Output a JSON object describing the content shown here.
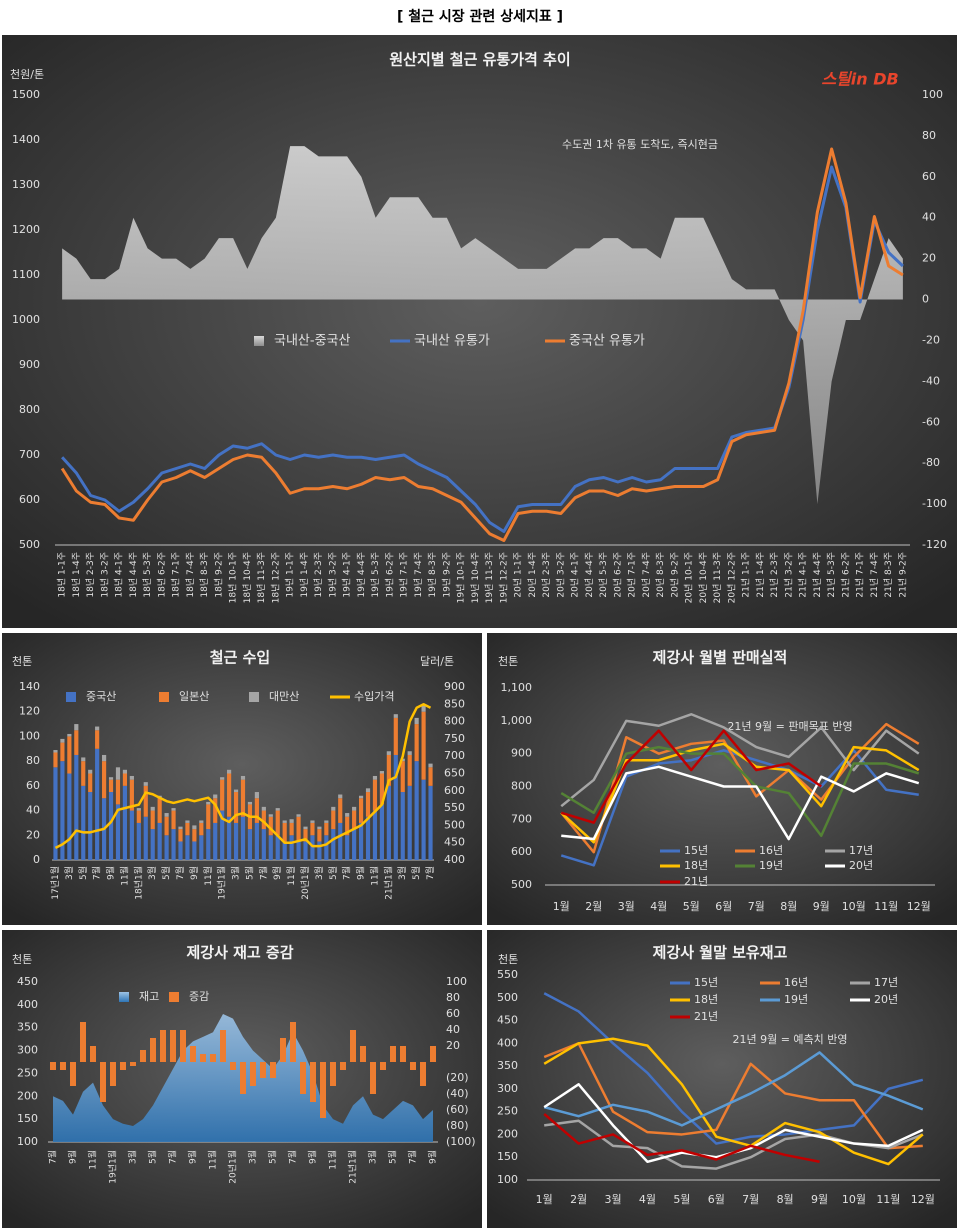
{
  "page_title": "[ 철근 시장 관련 상세지표 ]",
  "chart_data": [
    {
      "type": "combo",
      "title": "원산지별 철근 유통가격 추이",
      "y_label": "천원/톤",
      "annotation": "수도권 1차 유통 도착도, 즉시현금",
      "logo": "스틸in DB",
      "categories": [
        "18년 1-1주",
        "18년 1-4주",
        "18년 2-3주",
        "18년 3-2주",
        "18년 4-1주",
        "18년 4-4주",
        "18년 5-3주",
        "18년 6-2주",
        "18년 7-1주",
        "18년 7-4주",
        "18년 8-3주",
        "18년 9-2주",
        "18년 10-1주",
        "18년 10-4주",
        "18년 11-3주",
        "18년 12-2주",
        "19년 1-1주",
        "19년 1-4주",
        "19년 2-3주",
        "19년 3-2주",
        "19년 4-1주",
        "19년 4-4주",
        "19년 5-3주",
        "19년 6-2주",
        "19년 7-1주",
        "19년 7-4주",
        "19년 8-3주",
        "19년 9-2주",
        "19년 10-1주",
        "19년 10-4주",
        "19년 11-3주",
        "19년 12-2주",
        "20년 1-1주",
        "20년 1-4주",
        "20년 2-3주",
        "20년 3-2주",
        "20년 4-1주",
        "20년 4-4주",
        "20년 5-3주",
        "20년 6-2주",
        "20년 7-1주",
        "20년 7-4주",
        "20년 8-3주",
        "20년 9-2주",
        "20년 10-1주",
        "20년 10-4주",
        "20년 11-3주",
        "20년 12-2주",
        "21년 1-1주",
        "21년 1-4주",
        "21년 2-3주",
        "21년 3-2주",
        "21년 4-1주",
        "21년 4-4주",
        "21년 5-3주",
        "21년 6-2주",
        "21년 7-1주",
        "21년 7-4주",
        "21년 8-3주",
        "21년 9-2주"
      ],
      "series": [
        {
          "name": "국내산-중국산",
          "kind": "area",
          "axis": "y2",
          "color": "#bfbfbf",
          "values": [
            25,
            20,
            10,
            10,
            15,
            40,
            25,
            20,
            20,
            15,
            20,
            30,
            30,
            15,
            30,
            40,
            75,
            75,
            70,
            70,
            70,
            60,
            40,
            50,
            50,
            50,
            40,
            40,
            25,
            30,
            25,
            20,
            15,
            15,
            15,
            20,
            25,
            25,
            30,
            30,
            25,
            25,
            20,
            40,
            40,
            40,
            25,
            10,
            5,
            5,
            5,
            -10,
            -20,
            -100,
            -40,
            -10,
            -10,
            10,
            30,
            20
          ]
        },
        {
          "name": "국내산 유통가",
          "kind": "line",
          "color": "#4472c4",
          "values": [
            695,
            660,
            610,
            600,
            575,
            595,
            625,
            660,
            670,
            680,
            670,
            700,
            720,
            715,
            725,
            700,
            690,
            700,
            695,
            700,
            695,
            695,
            690,
            695,
            700,
            680,
            665,
            650,
            620,
            590,
            550,
            530,
            585,
            590,
            590,
            590,
            630,
            645,
            650,
            640,
            650,
            640,
            645,
            670,
            670,
            670,
            670,
            740,
            750,
            755,
            760,
            850,
            1000,
            1200,
            1340,
            1250,
            1040,
            1220,
            1150,
            1120
          ]
        },
        {
          "name": "중국산 유통가",
          "kind": "line",
          "color": "#ed7d31",
          "values": [
            670,
            620,
            595,
            590,
            560,
            555,
            600,
            640,
            650,
            665,
            650,
            670,
            690,
            700,
            695,
            660,
            615,
            625,
            625,
            630,
            625,
            635,
            650,
            645,
            650,
            630,
            625,
            610,
            595,
            560,
            525,
            510,
            570,
            575,
            575,
            570,
            605,
            620,
            620,
            610,
            625,
            620,
            625,
            630,
            630,
            630,
            645,
            730,
            745,
            750,
            755,
            860,
            1020,
            1240,
            1380,
            1260,
            1050,
            1230,
            1120,
            1100
          ]
        }
      ],
      "ylim": [
        500,
        1500
      ],
      "yticks": [
        500,
        600,
        700,
        800,
        900,
        1000,
        1100,
        1200,
        1300,
        1400,
        1500
      ],
      "y2lim": [
        -120,
        100
      ],
      "y2ticks": [
        -120,
        -100,
        -80,
        -60,
        -40,
        -20,
        0,
        20,
        40,
        60,
        80,
        100
      ]
    },
    {
      "type": "combo",
      "title": "철근 수입",
      "y_label": "천톤",
      "y2_label": "달러/톤",
      "stacked": true,
      "categories": [
        "17년1월",
        null,
        "3월",
        null,
        "5월",
        null,
        "7월",
        null,
        "9월",
        null,
        "11월",
        null,
        "18년1월",
        null,
        "3월",
        null,
        "5월",
        null,
        "7월",
        null,
        "9월",
        null,
        "11월",
        null,
        "19년1월",
        null,
        "3월",
        null,
        "5월",
        null,
        "7월",
        null,
        "9월",
        null,
        "11월",
        null,
        "20년1월",
        null,
        "3월",
        null,
        "5월",
        null,
        "7월",
        null,
        "9월",
        null,
        "11월",
        null,
        "21년1월",
        null,
        "3월",
        null,
        "5월",
        null,
        "7월"
      ],
      "series": [
        {
          "name": "중국산",
          "kind": "bar",
          "color": "#4472c4",
          "values": [
            75,
            80,
            70,
            85,
            60,
            55,
            90,
            50,
            55,
            45,
            60,
            40,
            30,
            35,
            25,
            30,
            20,
            25,
            15,
            20,
            15,
            20,
            25,
            30,
            40,
            35,
            30,
            35,
            25,
            30,
            25,
            20,
            20,
            15,
            20,
            15,
            15,
            20,
            15,
            20,
            25,
            30,
            20,
            25,
            30,
            35,
            40,
            45,
            60,
            85,
            55,
            60,
            80,
            65,
            60
          ]
        },
        {
          "name": "일본산",
          "kind": "bar",
          "color": "#ed7d31",
          "values": [
            12,
            15,
            30,
            20,
            20,
            15,
            15,
            30,
            10,
            20,
            10,
            25,
            10,
            25,
            15,
            20,
            15,
            15,
            10,
            10,
            10,
            10,
            20,
            20,
            25,
            35,
            25,
            30,
            20,
            20,
            15,
            15,
            20,
            15,
            10,
            20,
            10,
            10,
            10,
            10,
            15,
            20,
            15,
            15,
            20,
            20,
            25,
            25,
            25,
            30,
            25,
            25,
            30,
            55,
            15
          ]
        },
        {
          "name": "대만산",
          "kind": "bar",
          "color": "#a5a5a5",
          "values": [
            2,
            3,
            2,
            5,
            3,
            3,
            3,
            5,
            2,
            10,
            3,
            3,
            2,
            3,
            3,
            2,
            3,
            2,
            2,
            2,
            3,
            2,
            2,
            3,
            2,
            3,
            2,
            3,
            2,
            5,
            3,
            2,
            2,
            2,
            3,
            2,
            2,
            2,
            2,
            2,
            3,
            3,
            3,
            3,
            2,
            3,
            3,
            2,
            3,
            3,
            2,
            3,
            5,
            5,
            3
          ]
        },
        {
          "name": "수입가격",
          "kind": "line",
          "axis": "y2",
          "color": "#ffc000",
          "values": [
            435,
            445,
            460,
            485,
            480,
            480,
            485,
            490,
            510,
            545,
            550,
            555,
            560,
            595,
            590,
            580,
            570,
            565,
            570,
            575,
            570,
            575,
            580,
            560,
            520,
            510,
            530,
            535,
            525,
            525,
            510,
            490,
            470,
            450,
            450,
            455,
            460,
            440,
            440,
            445,
            460,
            470,
            480,
            490,
            500,
            520,
            540,
            560,
            630,
            640,
            700,
            800,
            840,
            850,
            840
          ]
        }
      ],
      "ylim": [
        0,
        140
      ],
      "yticks": [
        0,
        20,
        40,
        60,
        80,
        100,
        120,
        140
      ],
      "y2lim": [
        400,
        900
      ],
      "y2ticks": [
        400,
        450,
        500,
        550,
        600,
        650,
        700,
        750,
        800,
        850,
        900
      ]
    },
    {
      "type": "line",
      "title": "제강사 월별 판매실적",
      "y_label": "천톤",
      "annotation": "21년 9월 = 판매목표 반영",
      "categories": [
        "1월",
        "2월",
        "3월",
        "4월",
        "5월",
        "6월",
        "7월",
        "8월",
        "9월",
        "10월",
        "11월",
        "12월"
      ],
      "series": [
        {
          "name": "15년",
          "color": "#4472c4",
          "values": [
            590,
            560,
            830,
            870,
            880,
            910,
            880,
            850,
            800,
            910,
            790,
            775
          ]
        },
        {
          "name": "16년",
          "color": "#ed7d31",
          "values": [
            720,
            600,
            950,
            900,
            930,
            940,
            770,
            850,
            760,
            890,
            990,
            930
          ]
        },
        {
          "name": "17년",
          "color": "#a5a5a5",
          "values": [
            740,
            820,
            1000,
            985,
            1020,
            980,
            920,
            890,
            980,
            850,
            970,
            900
          ]
        },
        {
          "name": "18년",
          "color": "#ffc000",
          "values": [
            720,
            630,
            880,
            880,
            910,
            930,
            860,
            850,
            740,
            920,
            910,
            850
          ]
        },
        {
          "name": "19년",
          "color": "#548235",
          "values": [
            780,
            720,
            900,
            920,
            900,
            900,
            800,
            780,
            650,
            870,
            870,
            840
          ]
        },
        {
          "name": "20년",
          "color": "#ffffff",
          "values": [
            650,
            640,
            840,
            860,
            830,
            800,
            800,
            640,
            830,
            785,
            840,
            810
          ]
        },
        {
          "name": "21년",
          "color": "#c00000",
          "values": [
            720,
            690,
            870,
            970,
            850,
            970,
            850,
            870,
            800,
            null,
            null,
            null
          ]
        }
      ],
      "ylim": [
        500,
        1100
      ],
      "yticks": [
        500,
        600,
        700,
        800,
        900,
        {
          "value": 1000,
          "label": "1,000"
        },
        {
          "value": 1100,
          "label": "1,100"
        }
      ]
    },
    {
      "type": "combo",
      "title": "제강사 재고 증감",
      "y_label": "천톤",
      "categories": [
        "7월",
        null,
        "9월",
        null,
        "11월",
        null,
        "19년1월",
        null,
        "3월",
        null,
        "5월",
        null,
        "7월",
        null,
        "9월",
        null,
        "11월",
        null,
        "20년1월",
        null,
        "3월",
        null,
        "5월",
        null,
        "7월",
        null,
        "9월",
        null,
        "11월",
        null,
        "21년1월",
        null,
        "3월",
        null,
        "5월",
        null,
        "7월",
        null,
        "9월"
      ],
      "series": [
        {
          "name": "재고",
          "kind": "area",
          "color": "#5b9bd5",
          "values": [
            200,
            190,
            160,
            210,
            230,
            180,
            150,
            140,
            135,
            150,
            180,
            220,
            260,
            300,
            320,
            330,
            340,
            380,
            370,
            330,
            300,
            280,
            260,
            290,
            340,
            300,
            250,
            180,
            150,
            140,
            180,
            200,
            160,
            150,
            170,
            190,
            180,
            150,
            170
          ]
        },
        {
          "name": "증감",
          "kind": "bar",
          "axis": "y2",
          "color": "#ed7d31",
          "values": [
            -10,
            -10,
            -30,
            50,
            20,
            -50,
            -30,
            -10,
            -5,
            15,
            30,
            40,
            40,
            40,
            20,
            10,
            10,
            40,
            -10,
            -40,
            -30,
            -20,
            -20,
            30,
            50,
            -40,
            -50,
            -70,
            -30,
            -10,
            40,
            20,
            -40,
            -10,
            20,
            20,
            -10,
            -30,
            20
          ]
        }
      ],
      "ylim": [
        100,
        450
      ],
      "yticks": [
        100,
        150,
        200,
        250,
        300,
        350,
        400,
        450
      ],
      "y2lim": [
        -100,
        100
      ],
      "y2ticks": [
        {
          "value": -100,
          "label": "(100)"
        },
        {
          "value": -80,
          "label": "(80)"
        },
        {
          "value": -60,
          "label": "(60)"
        },
        {
          "value": -40,
          "label": "(40)"
        },
        {
          "value": -20,
          "label": "(20)"
        },
        20,
        40,
        60,
        80,
        100
      ]
    },
    {
      "type": "line",
      "title": "제강사 월말 보유재고",
      "y_label": "천톤",
      "annotation": "21년 9월 = 예측치 반영",
      "categories": [
        "1월",
        "2월",
        "3월",
        "4월",
        "5월",
        "6월",
        "7월",
        "8월",
        "9월",
        "10월",
        "11월",
        "12월"
      ],
      "series": [
        {
          "name": "15년",
          "color": "#4472c4",
          "values": [
            510,
            470,
            400,
            335,
            250,
            180,
            195,
            200,
            210,
            220,
            300,
            320
          ]
        },
        {
          "name": "16년",
          "color": "#ed7d31",
          "values": [
            370,
            400,
            250,
            205,
            200,
            210,
            355,
            290,
            275,
            275,
            170,
            175
          ]
        },
        {
          "name": "17년",
          "color": "#a5a5a5",
          "values": [
            220,
            230,
            175,
            170,
            130,
            125,
            150,
            190,
            200,
            180,
            170,
            200
          ]
        },
        {
          "name": "18년",
          "color": "#ffc000",
          "values": [
            355,
            400,
            410,
            395,
            310,
            195,
            175,
            225,
            205,
            160,
            135,
            200
          ]
        },
        {
          "name": "19년",
          "color": "#5b9bd5",
          "values": [
            260,
            240,
            265,
            250,
            220,
            255,
            290,
            330,
            380,
            310,
            285,
            255
          ]
        },
        {
          "name": "20년",
          "color": "#ffffff",
          "values": [
            260,
            310,
            220,
            140,
            160,
            150,
            170,
            210,
            195,
            180,
            175,
            210
          ]
        },
        {
          "name": "21년",
          "color": "#c00000",
          "values": [
            245,
            180,
            200,
            155,
            165,
            145,
            175,
            155,
            140,
            null,
            null,
            null
          ]
        }
      ],
      "ylim": [
        100,
        550
      ],
      "yticks": [
        100,
        150,
        200,
        250,
        300,
        350,
        400,
        450,
        500,
        550
      ]
    }
  ]
}
